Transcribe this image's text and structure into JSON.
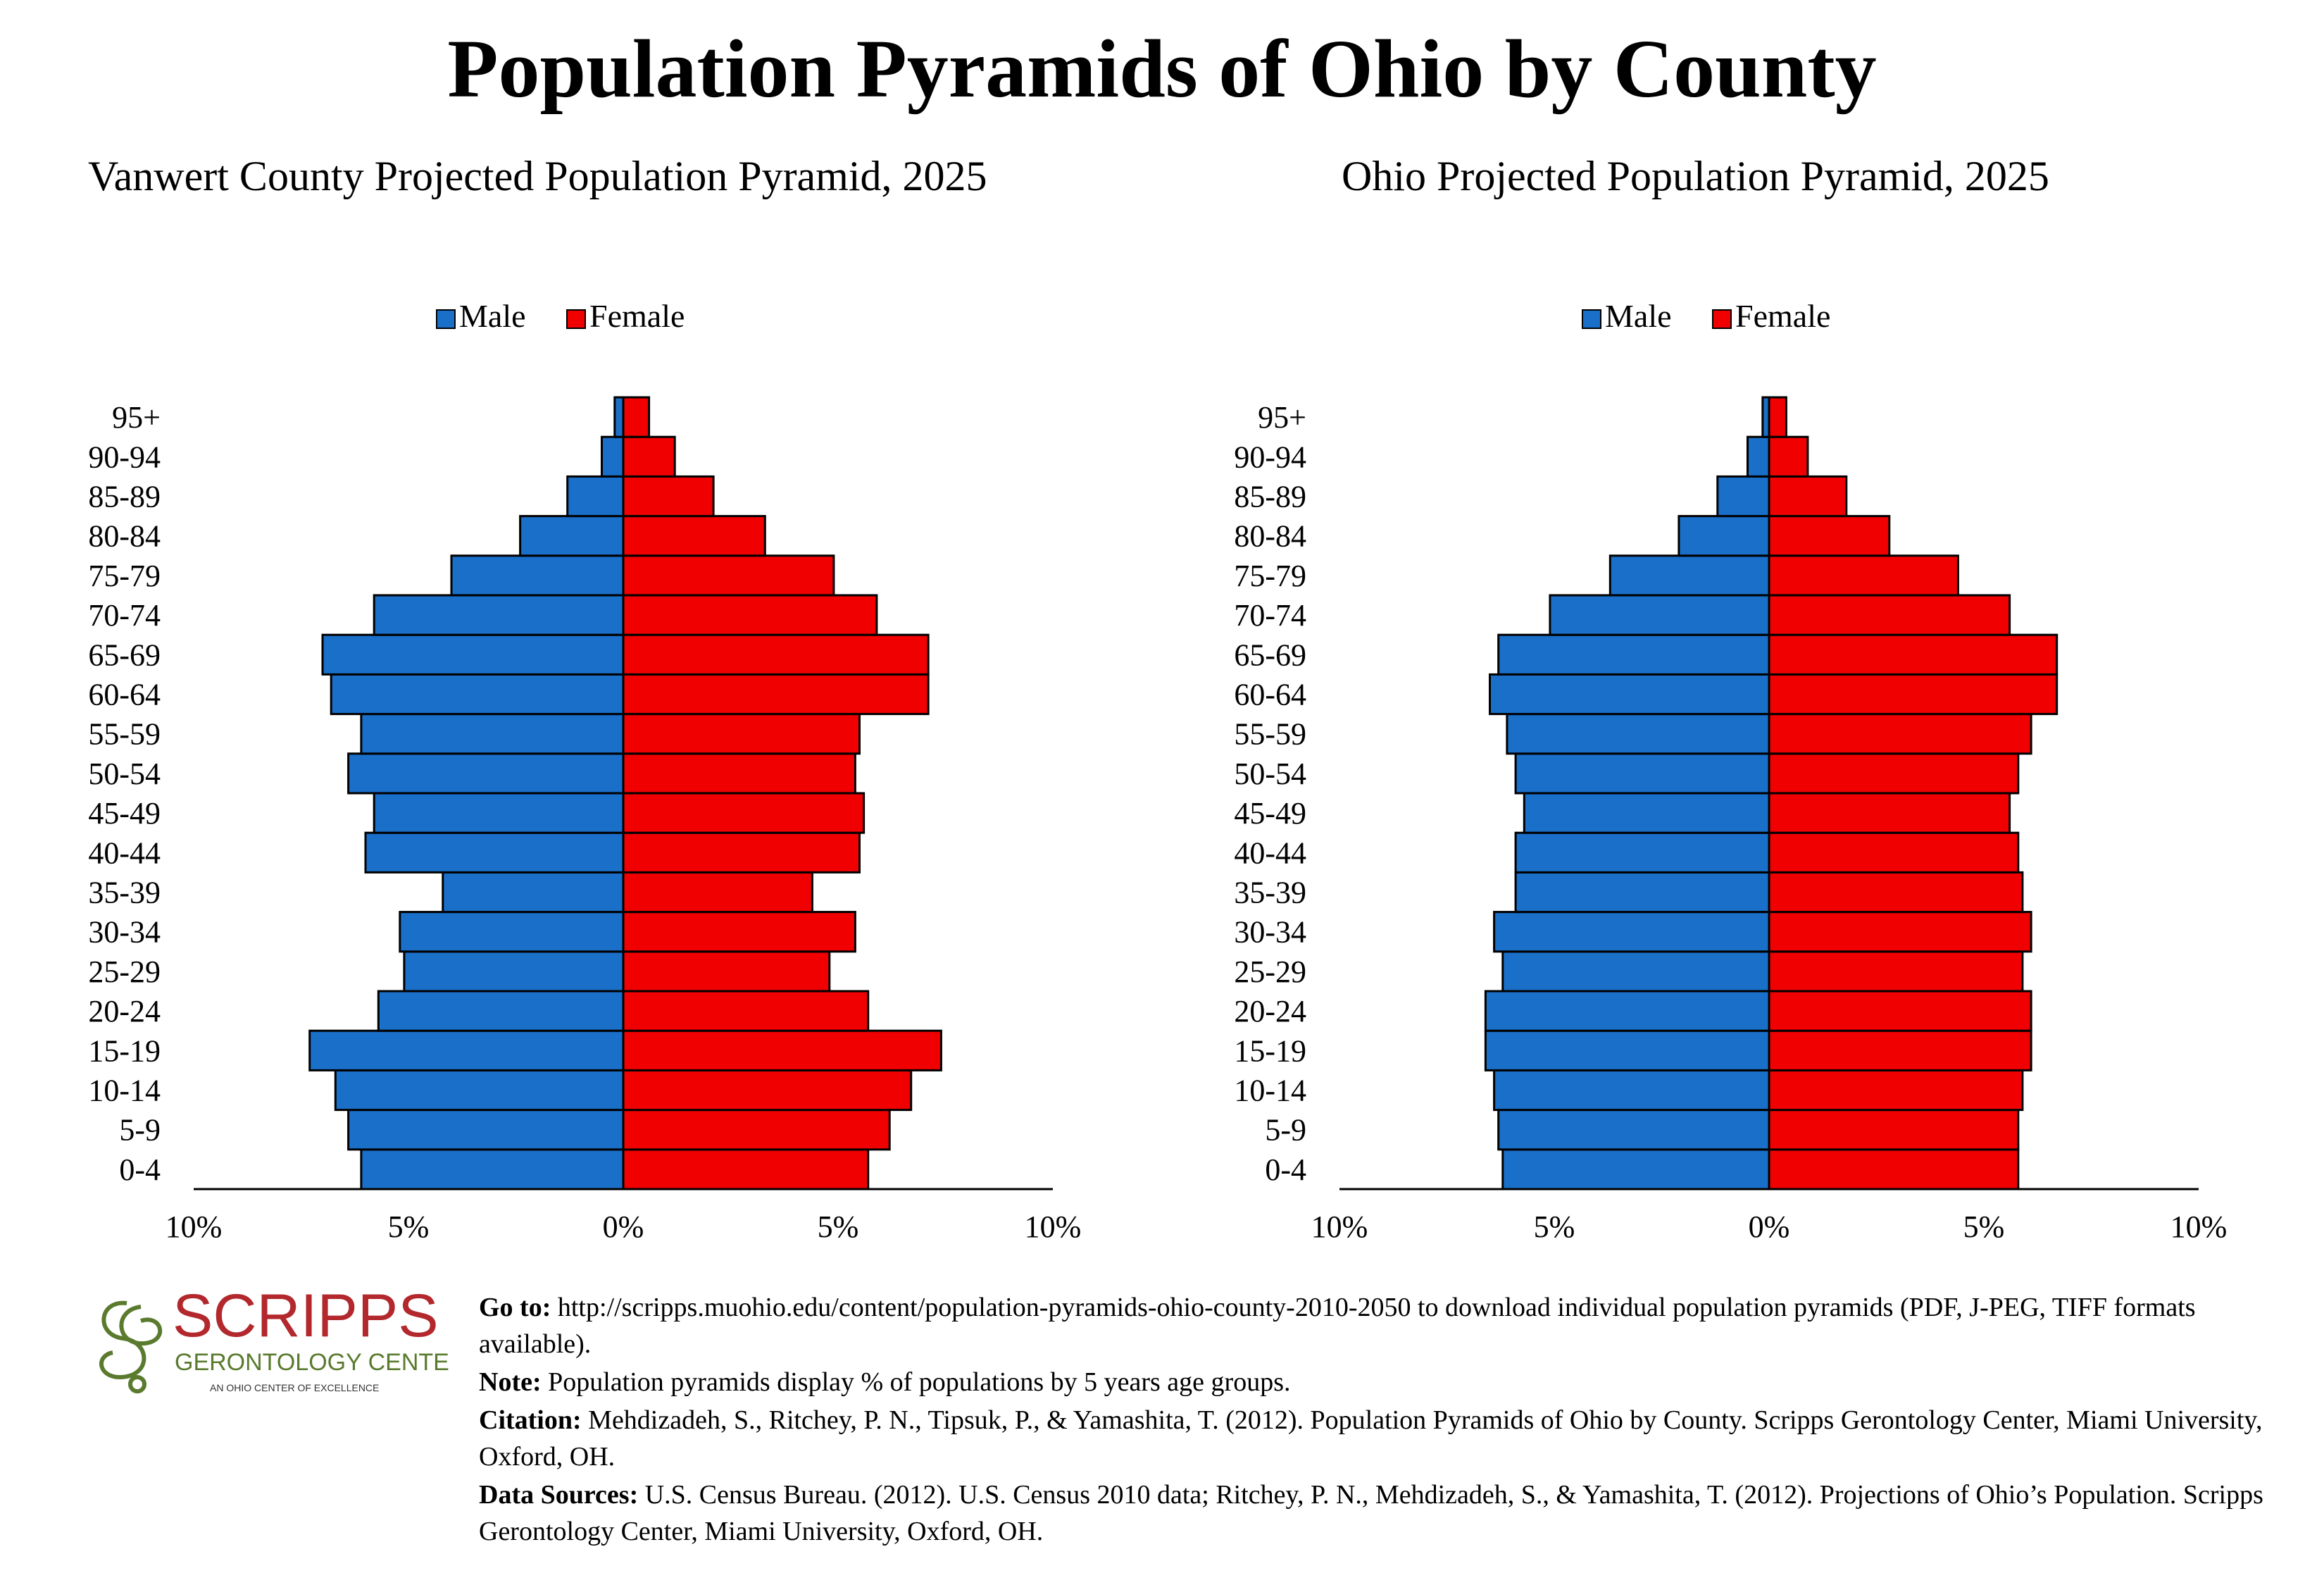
{
  "title": "Population Pyramids of Ohio by County",
  "legend": {
    "male": "Male",
    "female": "Female"
  },
  "colors": {
    "male": "#1a6fc9",
    "female": "#f00000"
  },
  "chart_data": [
    {
      "type": "bar",
      "title": "Vanwert County Projected Population Pyramid, 2025",
      "categories": [
        "0-4",
        "5-9",
        "10-14",
        "15-19",
        "20-24",
        "25-29",
        "30-34",
        "35-39",
        "40-44",
        "45-49",
        "50-54",
        "55-59",
        "60-64",
        "65-69",
        "70-74",
        "75-79",
        "80-84",
        "85-89",
        "90-94",
        "95+"
      ],
      "series": [
        {
          "name": "Male",
          "values": [
            6.1,
            6.4,
            6.7,
            7.3,
            5.7,
            5.1,
            5.2,
            4.2,
            6.0,
            5.8,
            6.4,
            6.1,
            6.8,
            7.0,
            5.8,
            4.0,
            2.4,
            1.3,
            0.5,
            0.2
          ]
        },
        {
          "name": "Female",
          "values": [
            5.7,
            6.2,
            6.7,
            7.4,
            5.7,
            4.8,
            5.4,
            4.4,
            5.5,
            5.6,
            5.4,
            5.5,
            7.1,
            7.1,
            5.9,
            4.9,
            3.3,
            2.1,
            1.2,
            0.6
          ]
        }
      ],
      "xlim": [
        -10,
        10
      ],
      "tick_labels": [
        "10%",
        "5%",
        "0%",
        "5%",
        "10%"
      ],
      "legend_position": "top-center"
    },
    {
      "type": "bar",
      "title": "Ohio Projected Population Pyramid, 2025",
      "categories": [
        "0-4",
        "5-9",
        "10-14",
        "15-19",
        "20-24",
        "25-29",
        "30-34",
        "35-39",
        "40-44",
        "45-49",
        "50-54",
        "55-59",
        "60-64",
        "65-69",
        "70-74",
        "75-79",
        "80-84",
        "85-89",
        "90-94",
        "95+"
      ],
      "series": [
        {
          "name": "Male",
          "values": [
            6.2,
            6.3,
            6.4,
            6.6,
            6.6,
            6.2,
            6.4,
            5.9,
            5.9,
            5.7,
            5.9,
            6.1,
            6.5,
            6.3,
            5.1,
            3.7,
            2.1,
            1.2,
            0.5,
            0.15
          ]
        },
        {
          "name": "Female",
          "values": [
            5.8,
            5.8,
            5.9,
            6.1,
            6.1,
            5.9,
            6.1,
            5.9,
            5.8,
            5.6,
            5.8,
            6.1,
            6.7,
            6.7,
            5.6,
            4.4,
            2.8,
            1.8,
            0.9,
            0.4
          ]
        }
      ],
      "xlim": [
        -10,
        10
      ],
      "tick_labels": [
        "10%",
        "5%",
        "0%",
        "5%",
        "10%"
      ],
      "legend_position": "top-center"
    }
  ],
  "logo": {
    "name": "SCRIPPS",
    "line2": "GERONTOLOGY CENTER",
    "line3": "AN OHIO CENTER OF EXCELLENCE"
  },
  "footer": {
    "goto_label": "Go to:",
    "goto_text": "http://scripps.muohio.edu/content/population-pyramids-ohio-county-2010-2050 to download individual population pyramids (PDF, J-PEG, TIFF formats available).",
    "note_label": "Note:",
    "note_text": "Population pyramids display % of populations by 5 years age groups.",
    "citation_label": "Citation:",
    "citation_text": "Mehdizadeh, S., Ritchey, P. N., Tipsuk, P., & Yamashita, T. (2012). Population Pyramids of Ohio by County. Scripps Gerontology Center, Miami University, Oxford, OH.",
    "sources_label": "Data Sources:",
    "sources_text": "U.S. Census Bureau. (2012). U.S. Census 2010 data; Ritchey, P. N., Mehdizadeh, S., & Yamashita, T. (2012). Projections of Ohio’s Population. Scripps Gerontology Center, Miami University, Oxford, OH."
  }
}
